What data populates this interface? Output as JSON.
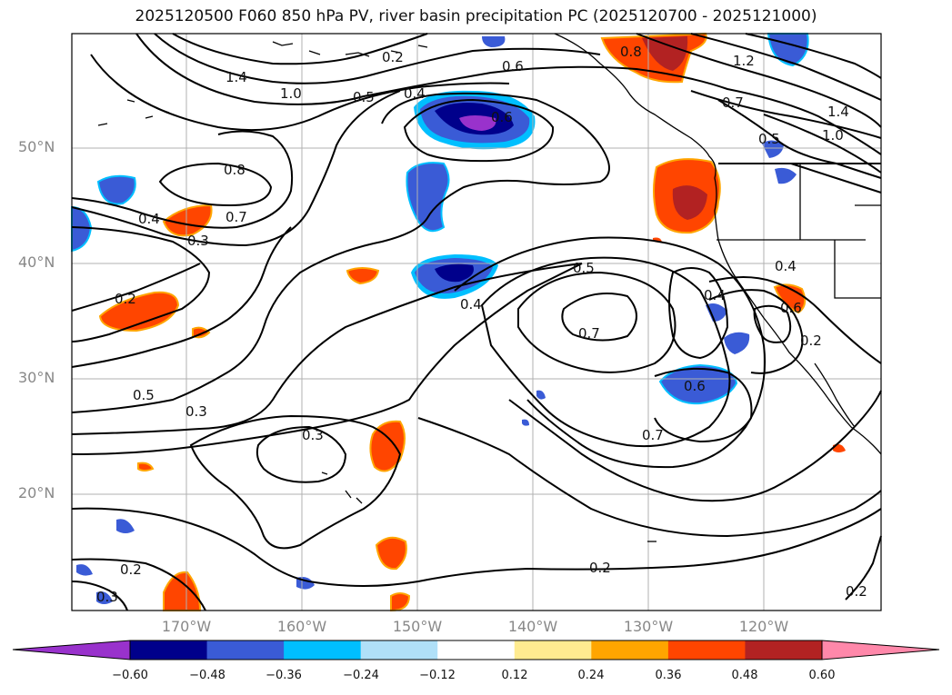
{
  "title": "2025120500 F060 850 hPa PV, river basin precipitation PC (2025120700 - 2025121000)",
  "lat_labels": [
    "50°N",
    "40°N",
    "30°N",
    "20°N"
  ],
  "lon_labels": [
    "170°W",
    "160°W",
    "150°W",
    "140°W",
    "130°W",
    "120°W"
  ],
  "colorbar": {
    "ticks": [
      "−0.60",
      "−0.48",
      "−0.36",
      "−0.24",
      "−0.12",
      "0.12",
      "0.24",
      "0.36",
      "0.48",
      "0.60"
    ],
    "colors": [
      "#9932cc",
      "#00008b",
      "#3a5bd6",
      "#00bfff",
      "#b0e0f8",
      "#ffffff",
      "#ffeb90",
      "#ffa500",
      "#ff4500",
      "#b22222",
      "#ff88aa"
    ]
  },
  "contour_labels": [
    "1.4",
    "1.0",
    "0.5",
    "0.4",
    "0.6",
    "0.8",
    "1.2",
    "0.7",
    "1.4",
    "1.0",
    "0.5",
    "0.8",
    "0.7",
    "0.4",
    "0.3",
    "0.2",
    "0.5",
    "0.4",
    "0.7",
    "0.4",
    "0.4",
    "0.6",
    "0.6",
    "0.5",
    "0.3",
    "0.3",
    "0.7",
    "0.2",
    "0.2",
    "0.3",
    "0.2",
    "0.2",
    "0.6",
    "0.2"
  ]
}
